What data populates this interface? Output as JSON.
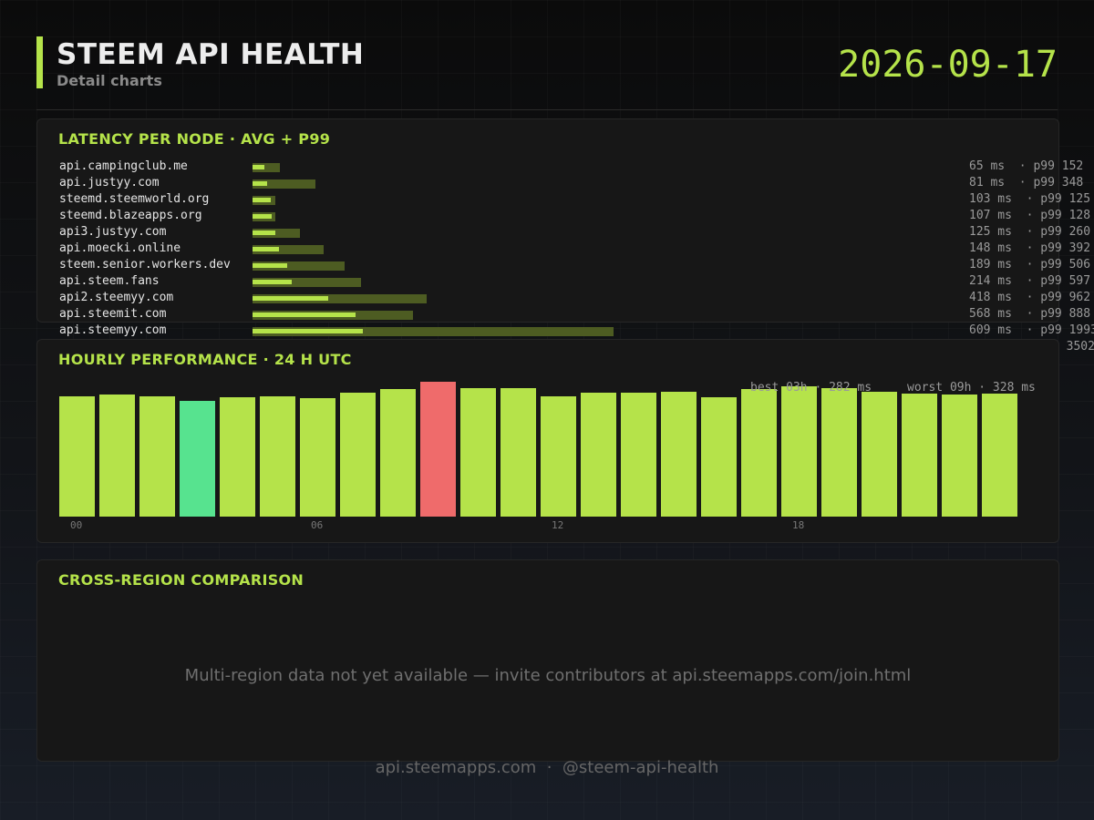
{
  "header": {
    "title": "STEEM API HEALTH",
    "subtitle": "Detail charts",
    "date": "2026-09-17"
  },
  "colors": {
    "accent": "#b5e34a",
    "best": "#57e38f",
    "worst": "#ef6b6b",
    "p99": "#4d5c22"
  },
  "latency": {
    "title": "LATENCY PER NODE  ·  AVG + P99",
    "nodes": [
      {
        "name": "api.campingclub.me",
        "stats": "65 ms  · p99 152"
      },
      {
        "name": "api.justyy.com",
        "stats": "81 ms  · p99 348"
      },
      {
        "name": "steemd.steemworld.org",
        "stats": "103 ms  · p99 125"
      },
      {
        "name": "steemd.blazeapps.org",
        "stats": "107 ms  · p99 128"
      },
      {
        "name": "api3.justyy.com",
        "stats": "125 ms  · p99 260"
      },
      {
        "name": "api.moecki.online",
        "stats": "148 ms  · p99 392"
      },
      {
        "name": "steem.senior.workers.dev",
        "stats": "189 ms  · p99 506"
      },
      {
        "name": "api.steem.fans",
        "stats": "214 ms  · p99 597"
      },
      {
        "name": "api2.steemyy.com",
        "stats": "418 ms  · p99 962"
      },
      {
        "name": "api.steemit.com",
        "stats": "568 ms  · p99 888"
      },
      {
        "name": "api.steemyy.com",
        "stats": "609 ms  · p99 1993"
      },
      {
        "name": "",
        "stats": "0 3502"
      }
    ]
  },
  "hourly": {
    "title": "HOURLY PERFORMANCE  ·  24 H UTC",
    "best_label": "best 03h · 282 ms",
    "worst_label": "worst 09h · 328 ms",
    "tick_labels": [
      "00",
      "06",
      "12",
      "18"
    ]
  },
  "cross_region": {
    "title": "CROSS-REGION COMPARISON",
    "message": "Multi-region data not yet available — invite contributors at api.steemapps.com/join.html"
  },
  "footer": "api.steemapps.com  ·  @steem-api-health",
  "chart_data": [
    {
      "type": "bar",
      "orientation": "horizontal",
      "title": "LATENCY PER NODE  ·  AVG + P99",
      "categories": [
        "api.campingclub.me",
        "api.justyy.com",
        "steemd.steemworld.org",
        "steemd.blazeapps.org",
        "api3.justyy.com",
        "api.moecki.online",
        "steem.senior.workers.dev",
        "api.steem.fans",
        "api2.steemyy.com",
        "api.steemit.com",
        "api.steemyy.com"
      ],
      "series": [
        {
          "name": "avg",
          "values": [
            65,
            81,
            103,
            107,
            125,
            148,
            189,
            214,
            418,
            568,
            609
          ]
        },
        {
          "name": "p99",
          "values": [
            152,
            348,
            125,
            128,
            260,
            392,
            506,
            597,
            962,
            888,
            1993
          ]
        }
      ],
      "xlim": [
        0,
        4450
      ]
    },
    {
      "type": "bar",
      "title": "HOURLY PERFORMANCE  ·  24 H UTC",
      "categories": [
        "00",
        "01",
        "02",
        "03",
        "04",
        "05",
        "06",
        "07",
        "08",
        "09",
        "10",
        "11",
        "12",
        "13",
        "14",
        "15",
        "16",
        "17",
        "18",
        "19",
        "20",
        "21",
        "22",
        "23"
      ],
      "values": [
        294,
        297,
        292,
        282,
        291,
        294,
        288,
        301,
        311,
        328,
        313,
        313,
        292,
        302,
        302,
        304,
        291,
        311,
        317,
        313,
        304,
        299,
        298,
        300
      ],
      "best": {
        "hour": "03",
        "value": 282
      },
      "worst": {
        "hour": "09",
        "value": 328
      },
      "ylim": [
        0,
        333
      ]
    }
  ]
}
